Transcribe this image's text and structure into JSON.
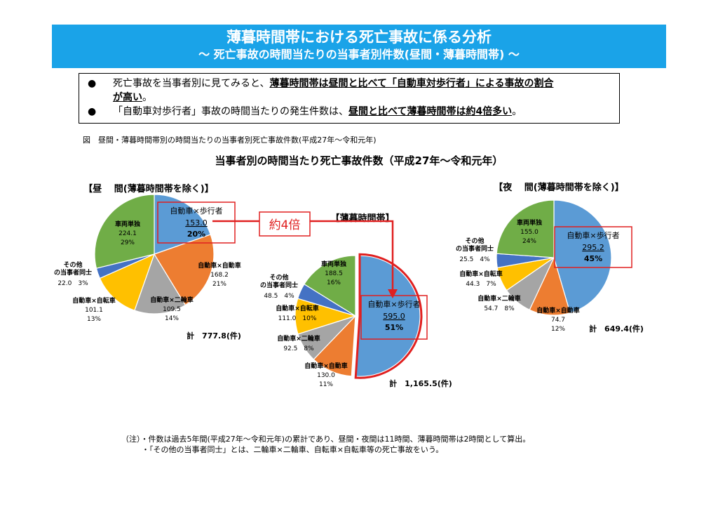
{
  "header": {
    "title": "薄暮時間帯における死亡事故に係る分析",
    "subtitle": "～ 死亡事故の時間当たりの当事者別件数(昼間・薄暮時間帯) ～"
  },
  "summary": {
    "bullet": "●",
    "line1_a": "死亡事故を当事者別に見てみると、",
    "line1_b": "薄暮時間帯は昼間と比べて「自動車対歩行者」による事故の割合",
    "line1_c": "が高い",
    "line1_d": "。",
    "line2_a": "「自動車対歩行者」事故の時間当たりの発生件数は、",
    "line2_b": "昼間と比べて薄暮時間帯は約4倍多い",
    "line2_c": "。"
  },
  "figure_caption": "図　昼間・薄暮時間帯別の時間当たりの当事者別死亡事故件数(平成27年～令和元年)",
  "chart_title": "当事者別の時間当たり死亡事故件数（平成27年～令和元年）",
  "callout": "約4倍",
  "notes": {
    "note1": "（注）・件数は過去5年間(平成27年～令和元年)の累計であり、昼間・夜間は11時間、薄暮時間帯は2時間として算出。",
    "note2": "・「その他の当事者同士」とは、二輪車×二輪車、自転車×自転車等の死亡事故をいう。"
  },
  "colors": {
    "header_bg": "#1aa3e8",
    "pedestrian": "#5b9bd5",
    "car_car": "#ed7d31",
    "motorcycle": "#a5a5a5",
    "bicycle": "#ffc000",
    "other": "#4472c4",
    "single": "#70ad47",
    "highlight": "#e02020"
  },
  "chart_data": [
    {
      "type": "pie",
      "title": "【昼　 間(薄暮時間帯を除く)】",
      "total_label": "計　777.8(件)",
      "slices": [
        {
          "label": "自動車×歩行者",
          "value": 153.0,
          "value_label": "153.0",
          "percent": "20%"
        },
        {
          "label": "自動車×自動車",
          "value": 168.2,
          "value_label": "168.2",
          "percent": "21%"
        },
        {
          "label": "自動車×二輪車",
          "value": 109.5,
          "value_label": "109.5",
          "percent": "14%"
        },
        {
          "label": "自動車×自転車",
          "value": 101.1,
          "value_label": "101.1",
          "percent": "13%"
        },
        {
          "label": "その他の当事者同士",
          "value": 22.0,
          "value_label": "22.0",
          "percent": "3%"
        },
        {
          "label": "車両単独",
          "value": 224.1,
          "value_label": "224.1",
          "percent": "29%"
        }
      ]
    },
    {
      "type": "pie",
      "title": "【薄暮時間帯】",
      "total_label": "計　1,165.5(件)",
      "slices": [
        {
          "label": "自動車×歩行者",
          "value": 595.0,
          "value_label": "595.0",
          "percent": "51%"
        },
        {
          "label": "自動車×自動車",
          "value": 130.0,
          "value_label": "130.0",
          "percent": "11%"
        },
        {
          "label": "自動車×二輪車",
          "value": 92.5,
          "value_label": "92.5",
          "percent": "8%"
        },
        {
          "label": "自動車×自転車",
          "value": 111.0,
          "value_label": "111.0",
          "percent": "10%"
        },
        {
          "label": "その他の当事者同士",
          "value": 48.5,
          "value_label": "48.5",
          "percent": "4%"
        },
        {
          "label": "車両単独",
          "value": 188.5,
          "value_label": "188.5",
          "percent": "16%"
        }
      ]
    },
    {
      "type": "pie",
      "title": "【夜　 間(薄暮時間帯を除く)】",
      "total_label": "計　649.4(件)",
      "slices": [
        {
          "label": "自動車×歩行者",
          "value": 295.2,
          "value_label": "295.2",
          "percent": "45%"
        },
        {
          "label": "自動車×自動車",
          "value": 74.7,
          "value_label": "74.7",
          "percent": "12%"
        },
        {
          "label": "自動車×二輪車",
          "value": 54.7,
          "value_label": "54.7",
          "percent": "8%"
        },
        {
          "label": "自動車×自転車",
          "value": 44.3,
          "value_label": "44.3",
          "percent": "7%"
        },
        {
          "label": "その他の当事者同士",
          "value": 25.5,
          "value_label": "25.5",
          "percent": "4%"
        },
        {
          "label": "車両単独",
          "value": 155.0,
          "value_label": "155.0",
          "percent": "24%"
        }
      ]
    }
  ]
}
